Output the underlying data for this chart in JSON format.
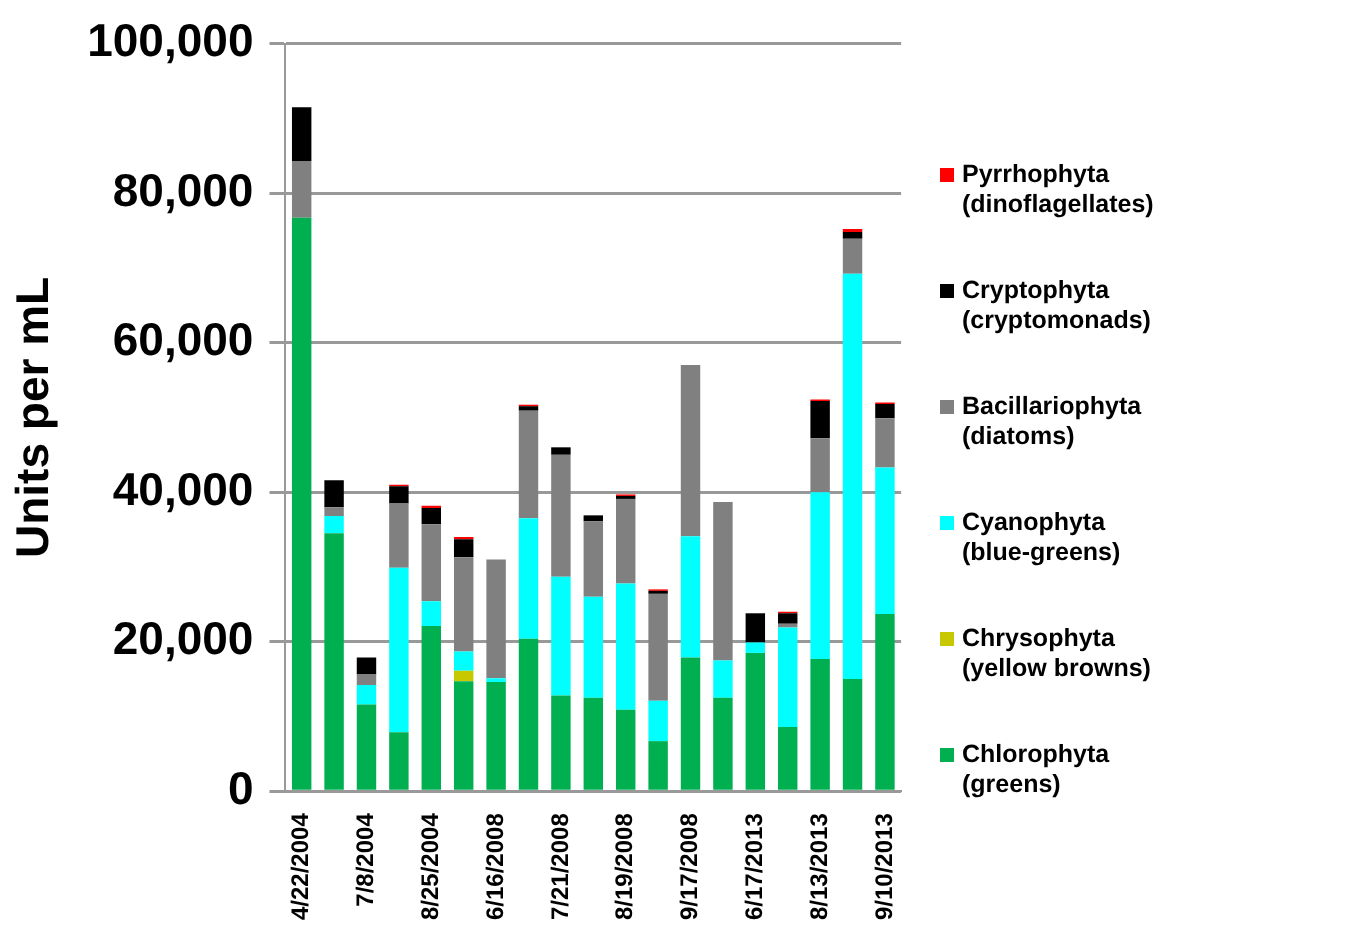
{
  "chart_data": {
    "type": "bar",
    "stacked": true,
    "ylabel": "Units per mL",
    "categories": [
      "4/22/2004",
      null,
      "7/8/2004",
      null,
      "8/25/2004",
      null,
      "6/16/2008",
      null,
      "7/21/2008",
      null,
      "8/19/2008",
      null,
      "9/17/2008",
      null,
      "6/17/2013",
      null,
      "8/13/2013",
      null,
      "9/10/2013"
    ],
    "ylim": [
      0,
      100000
    ],
    "yticks": [
      0,
      {
        "value": 20000,
        "label": "20,000"
      },
      {
        "value": 40000,
        "label": "40,000"
      },
      {
        "value": 60000,
        "label": "60,000"
      },
      {
        "value": 80000,
        "label": "80,000"
      },
      {
        "value": 100000,
        "label": "100,000"
      }
    ],
    "grid": "y",
    "legend": "right",
    "series": [
      {
        "name": "Chlorophyta (greens)",
        "color": "#00b050",
        "values": [
          76700,
          34500,
          11600,
          7900,
          22100,
          14700,
          14600,
          20400,
          12800,
          12500,
          10900,
          6700,
          17900,
          12500,
          18500,
          8600,
          17700,
          15000,
          23700
        ]
      },
      {
        "name": "Chrysophyta (yellow browns)",
        "color": "#c8c800",
        "values": [
          0,
          0,
          0,
          0,
          0,
          1400,
          0,
          0,
          0,
          0,
          0,
          0,
          0,
          0,
          0,
          0,
          0,
          0,
          0
        ]
      },
      {
        "name": "Cyanophyta (blue-greens)",
        "color": "#00ffff",
        "values": [
          0,
          2300,
          2600,
          22000,
          3300,
          2600,
          500,
          16100,
          15900,
          13500,
          16900,
          5400,
          16200,
          5000,
          1400,
          13300,
          22300,
          54200,
          19600
        ]
      },
      {
        "name": "Bacillariophyta (diatoms)",
        "color": "#808080",
        "values": [
          7600,
          1200,
          1400,
          8600,
          10300,
          12600,
          15900,
          14400,
          16300,
          10100,
          11300,
          14300,
          22900,
          21200,
          0,
          500,
          7200,
          4700,
          6600
        ]
      },
      {
        "name": "Cryptophyta (cryptomonads)",
        "color": "#000000",
        "values": [
          7200,
          3600,
          2300,
          2300,
          2200,
          2400,
          0,
          600,
          1000,
          800,
          400,
          400,
          0,
          0,
          3900,
          1400,
          5000,
          900,
          1900
        ]
      },
      {
        "name": "Pyrrhophyta (dinoflagellates)",
        "color": "#ff0000",
        "values": [
          0,
          0,
          0,
          200,
          300,
          300,
          0,
          200,
          0,
          0,
          200,
          200,
          0,
          0,
          0,
          200,
          200,
          400,
          200
        ]
      }
    ]
  }
}
